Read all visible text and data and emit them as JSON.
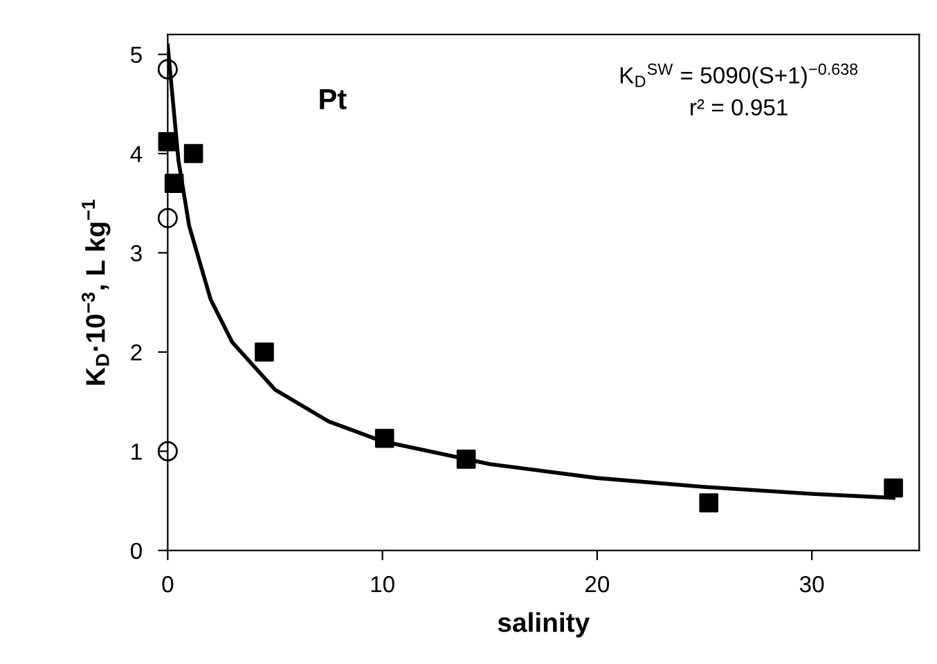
{
  "chart_data": {
    "type": "scatter",
    "xlabel": "salinity",
    "ylabel": "K$_{D}$·10$^{−3}$, L kg$^{−1}$",
    "annotations": [
      "Pt",
      "K$_{D}$$^{SW}$ = 5090(S+1)$^{−0.638}$",
      "r² = 0.951"
    ],
    "xlim": [
      0,
      35
    ],
    "xticks": [
      0,
      10,
      20,
      30
    ],
    "ylim": [
      0,
      5.2
    ],
    "yticks": [
      0,
      1,
      2,
      3,
      4,
      5
    ],
    "grid": false,
    "legend": false,
    "series": [
      {
        "marker": "square",
        "color": "#000000",
        "x": [
          0,
          0.3,
          1.2,
          4.5,
          10.1,
          13.9,
          25.2,
          33.8
        ],
        "values": [
          4.12,
          3.7,
          4.0,
          2.0,
          1.13,
          0.92,
          0.48,
          0.63
        ]
      },
      {
        "marker": "circle",
        "color": "#000000",
        "x": [
          0,
          0,
          0
        ],
        "values": [
          4.85,
          3.35,
          1.0
        ]
      },
      {
        "type": "line",
        "marker": "none",
        "line_style": "solid",
        "color": "#000000",
        "x": [
          0,
          0.5,
          1,
          2,
          3,
          5,
          7.5,
          10,
          15,
          20,
          25,
          30,
          33.8
        ],
        "values": [
          5.09,
          3.93,
          3.27,
          2.53,
          2.1,
          1.62,
          1.3,
          1.1,
          0.87,
          0.73,
          0.64,
          0.57,
          0.53
        ]
      }
    ]
  }
}
